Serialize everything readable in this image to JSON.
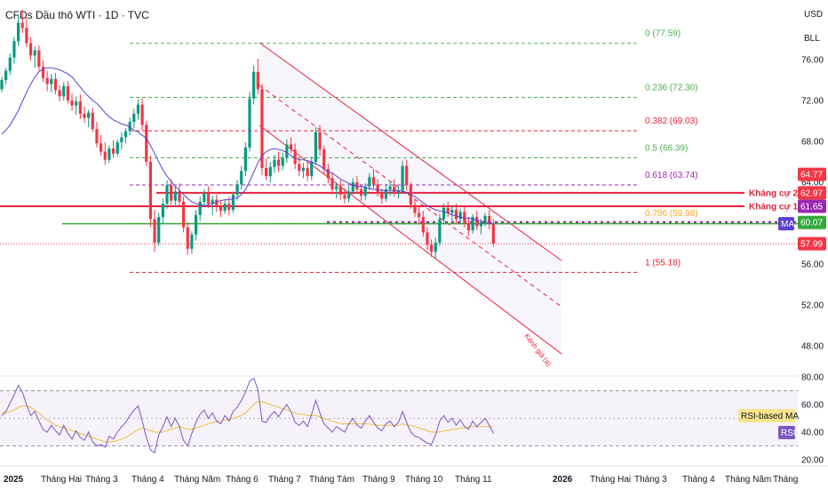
{
  "header": {
    "title": "CFDs Dầu thô WTI · 1D · TVC",
    "currency": "USD",
    "unit": "BLL"
  },
  "colors": {
    "up": "#089981",
    "down": "#f23645",
    "ma": "#5b3fd0",
    "rsi": "#7e57c2",
    "rsi_ma": "#f0c03a",
    "resistance": "#e8213a",
    "support": "#36a83c",
    "channel": "#e8213a",
    "pivot": "#9c27b0"
  },
  "chart_data": {
    "type": "candlestick",
    "price_axis": {
      "ticks": [
        "76.00",
        "72.00",
        "68.00",
        "64.00",
        "60.00",
        "56.00",
        "52.00",
        "48.00"
      ]
    },
    "rsi_axis": {
      "ticks": [
        "80.00",
        "60.00",
        "40.00",
        "20.00"
      ]
    },
    "time_axis": {
      "ticks": [
        {
          "label": "2025",
          "bold": true
        },
        {
          "label": "Tháng Hai",
          "bold": false
        },
        {
          "label": "Tháng 3",
          "bold": false
        },
        {
          "label": "Tháng 4",
          "bold": false
        },
        {
          "label": "Tháng Năm",
          "bold": false
        },
        {
          "label": "Tháng 6",
          "bold": false
        },
        {
          "label": "Tháng 7",
          "bold": false
        },
        {
          "label": "Tháng Tám",
          "bold": false
        },
        {
          "label": "Tháng 9",
          "bold": false
        },
        {
          "label": "Tháng 10",
          "bold": false
        },
        {
          "label": "Tháng 11",
          "bold": false
        },
        {
          "label": "2026",
          "bold": true
        },
        {
          "label": "Tháng Hai",
          "bold": false
        },
        {
          "label": "Tháng 3",
          "bold": false
        },
        {
          "label": "Tháng 4",
          "bold": false
        },
        {
          "label": "Tháng Năm",
          "bold": false
        },
        {
          "label": "Tháng",
          "bold": false
        }
      ]
    },
    "fib_levels": [
      {
        "label": "0 (77.59)",
        "value": 77.59,
        "color": "#4caf50"
      },
      {
        "label": "0.236 (72.30)",
        "value": 72.3,
        "color": "#4caf50"
      },
      {
        "label": "0.382 (69.03)",
        "value": 69.03,
        "color": "#e8213a"
      },
      {
        "label": "0.5 (66.39)",
        "value": 66.39,
        "color": "#4caf50"
      },
      {
        "label": "0.618 (63.74)",
        "value": 63.74,
        "color": "#9c27b0"
      },
      {
        "label": "0.786 (59.98)",
        "value": 59.98,
        "color": "#f5a623"
      },
      {
        "label": "1 (55.18)",
        "value": 55.18,
        "color": "#e8213a"
      }
    ],
    "resistance": [
      {
        "label": "Kháng cự 2",
        "value": 62.97
      },
      {
        "label": "Kháng cự 1",
        "value": 61.65
      }
    ],
    "support_line": 59.95,
    "pivot_line": 60.07,
    "channel_label": "Kênh giá (a)",
    "price_badges": [
      {
        "text": "64.77",
        "value": 64.77,
        "color": "#f23645"
      },
      {
        "text": "62.97",
        "value": 62.97,
        "color": "#f23645"
      },
      {
        "text": "61.65",
        "value": 61.65,
        "color": "#9c27b0"
      },
      {
        "text": "60.07",
        "value": 60.07,
        "color": "#36a83c"
      },
      {
        "text": "MA",
        "value": 59.95,
        "color": "#5b3fd0"
      },
      {
        "text": "57.99",
        "value": 57.99,
        "color": "#f23645"
      }
    ],
    "rsi_labels": {
      "ma": "RSI-based MA",
      "rsi": "RSI"
    },
    "rsi_bounds": [
      70,
      50,
      30
    ],
    "candles": [
      [
        73.1,
        74.3,
        72.8,
        74.0
      ],
      [
        74.0,
        75.2,
        73.6,
        74.9
      ],
      [
        74.9,
        76.6,
        74.5,
        76.2
      ],
      [
        76.2,
        78.2,
        75.6,
        77.8
      ],
      [
        77.8,
        80.3,
        77.3,
        79.6
      ],
      [
        79.6,
        80.9,
        78.6,
        79.1
      ],
      [
        79.1,
        80.1,
        77.2,
        77.6
      ],
      [
        77.6,
        78.2,
        75.9,
        76.4
      ],
      [
        76.4,
        77.3,
        75.2,
        76.9
      ],
      [
        76.9,
        77.4,
        74.9,
        75.3
      ],
      [
        75.3,
        75.9,
        73.8,
        74.2
      ],
      [
        74.2,
        74.9,
        72.9,
        73.6
      ],
      [
        73.6,
        74.6,
        72.8,
        74.1
      ],
      [
        74.1,
        74.7,
        72.6,
        73.0
      ],
      [
        73.0,
        73.5,
        71.9,
        72.4
      ],
      [
        72.4,
        73.8,
        72.0,
        73.4
      ],
      [
        73.4,
        73.9,
        71.7,
        72.0
      ],
      [
        72.0,
        72.7,
        71.0,
        71.5
      ],
      [
        71.5,
        72.4,
        70.6,
        71.9
      ],
      [
        71.9,
        72.6,
        70.2,
        70.7
      ],
      [
        70.7,
        71.4,
        69.8,
        70.3
      ],
      [
        70.3,
        71.1,
        69.4,
        70.8
      ],
      [
        70.8,
        71.3,
        68.9,
        69.2
      ],
      [
        69.2,
        69.9,
        67.4,
        67.8
      ],
      [
        67.8,
        68.6,
        66.6,
        67.0
      ],
      [
        67.0,
        67.9,
        65.7,
        66.2
      ],
      [
        66.2,
        67.6,
        65.9,
        67.3
      ],
      [
        67.3,
        68.1,
        66.4,
        66.8
      ],
      [
        66.8,
        68.2,
        66.5,
        67.9
      ],
      [
        67.9,
        68.9,
        67.2,
        68.4
      ],
      [
        68.4,
        69.3,
        67.8,
        69.0
      ],
      [
        69.0,
        70.3,
        68.6,
        69.9
      ],
      [
        69.9,
        71.2,
        69.3,
        70.7
      ],
      [
        70.7,
        72.1,
        70.1,
        71.6
      ],
      [
        71.6,
        72.2,
        69.1,
        69.6
      ],
      [
        69.6,
        70.0,
        65.6,
        66.0
      ],
      [
        66.0,
        66.6,
        59.6,
        60.4
      ],
      [
        60.4,
        61.3,
        57.2,
        58.1
      ],
      [
        58.1,
        61.0,
        57.8,
        60.6
      ],
      [
        60.6,
        62.4,
        59.9,
        61.9
      ],
      [
        61.9,
        64.2,
        61.4,
        63.7
      ],
      [
        63.7,
        64.3,
        61.8,
        62.2
      ],
      [
        62.2,
        63.6,
        61.6,
        63.1
      ],
      [
        63.1,
        63.9,
        61.7,
        62.1
      ],
      [
        62.1,
        62.6,
        59.1,
        59.6
      ],
      [
        59.6,
        60.1,
        56.9,
        57.5
      ],
      [
        57.5,
        59.2,
        57.0,
        58.9
      ],
      [
        58.9,
        61.3,
        58.3,
        60.8
      ],
      [
        60.8,
        62.6,
        60.2,
        62.1
      ],
      [
        62.1,
        63.3,
        61.6,
        62.9
      ],
      [
        62.9,
        63.6,
        61.5,
        61.9
      ],
      [
        61.9,
        62.7,
        60.8,
        62.3
      ],
      [
        62.3,
        62.8,
        61.1,
        61.6
      ],
      [
        61.6,
        62.3,
        60.6,
        61.2
      ],
      [
        61.2,
        62.3,
        60.9,
        61.9
      ],
      [
        61.9,
        62.6,
        60.8,
        61.3
      ],
      [
        61.3,
        63.1,
        61.0,
        62.8
      ],
      [
        62.8,
        64.2,
        62.2,
        63.8
      ],
      [
        63.8,
        65.6,
        63.3,
        65.1
      ],
      [
        65.1,
        67.9,
        64.6,
        67.4
      ],
      [
        67.4,
        72.8,
        67.0,
        72.2
      ],
      [
        72.2,
        75.4,
        71.6,
        74.8
      ],
      [
        74.8,
        76.1,
        72.6,
        73.1
      ],
      [
        73.1,
        73.6,
        64.7,
        65.4
      ],
      [
        65.4,
        66.3,
        64.2,
        64.6
      ],
      [
        64.6,
        66.0,
        64.0,
        65.5
      ],
      [
        65.5,
        66.7,
        64.9,
        66.2
      ],
      [
        66.2,
        67.0,
        65.0,
        65.6
      ],
      [
        65.6,
        66.9,
        65.2,
        66.4
      ],
      [
        66.4,
        68.2,
        65.9,
        67.7
      ],
      [
        67.7,
        68.4,
        66.8,
        67.2
      ],
      [
        67.2,
        67.8,
        65.3,
        65.8
      ],
      [
        65.8,
        66.4,
        64.6,
        65.1
      ],
      [
        65.1,
        65.9,
        64.4,
        65.4
      ],
      [
        65.4,
        66.1,
        64.1,
        64.6
      ],
      [
        64.6,
        66.5,
        64.2,
        66.0
      ],
      [
        66.0,
        69.4,
        65.7,
        68.9
      ],
      [
        68.9,
        69.6,
        66.6,
        67.2
      ],
      [
        67.2,
        67.6,
        64.8,
        65.3
      ],
      [
        65.3,
        65.8,
        63.9,
        64.4
      ],
      [
        64.4,
        64.9,
        62.8,
        63.3
      ],
      [
        63.3,
        64.0,
        62.4,
        63.6
      ],
      [
        63.6,
        64.2,
        62.3,
        62.8
      ],
      [
        62.8,
        63.4,
        61.9,
        62.4
      ],
      [
        62.4,
        63.6,
        62.0,
        63.1
      ],
      [
        63.1,
        64.4,
        62.8,
        64.0
      ],
      [
        64.0,
        64.6,
        62.9,
        63.3
      ],
      [
        63.3,
        63.8,
        62.2,
        62.7
      ],
      [
        62.7,
        63.9,
        62.3,
        63.6
      ],
      [
        63.6,
        64.9,
        63.2,
        64.5
      ],
      [
        64.5,
        65.3,
        63.4,
        63.8
      ],
      [
        63.8,
        64.3,
        62.6,
        63.0
      ],
      [
        63.0,
        63.4,
        61.9,
        62.4
      ],
      [
        62.4,
        63.8,
        62.1,
        63.3
      ],
      [
        63.3,
        64.1,
        62.7,
        63.6
      ],
      [
        63.6,
        64.3,
        62.6,
        62.9
      ],
      [
        62.9,
        63.6,
        62.4,
        63.2
      ],
      [
        63.2,
        66.1,
        63.0,
        65.6
      ],
      [
        65.6,
        66.2,
        63.2,
        63.7
      ],
      [
        63.7,
        64.0,
        61.4,
        61.8
      ],
      [
        61.8,
        62.3,
        60.6,
        61.0
      ],
      [
        61.0,
        61.6,
        59.9,
        60.6
      ],
      [
        60.6,
        61.2,
        58.7,
        59.1
      ],
      [
        59.1,
        59.6,
        57.4,
        57.9
      ],
      [
        57.9,
        58.4,
        56.7,
        57.2
      ],
      [
        57.2,
        58.6,
        56.5,
        58.1
      ],
      [
        58.1,
        60.9,
        57.8,
        60.4
      ],
      [
        60.4,
        61.9,
        60.0,
        61.5
      ],
      [
        61.5,
        62.1,
        60.6,
        61.0
      ],
      [
        61.0,
        61.7,
        60.2,
        61.3
      ],
      [
        61.3,
        61.9,
        59.9,
        60.4
      ],
      [
        60.4,
        61.4,
        60.0,
        61.1
      ],
      [
        61.1,
        61.6,
        59.6,
        60.0
      ],
      [
        60.0,
        60.6,
        58.8,
        59.3
      ],
      [
        59.3,
        60.9,
        59.0,
        60.6
      ],
      [
        60.6,
        61.2,
        59.3,
        59.7
      ],
      [
        59.7,
        60.4,
        58.9,
        60.1
      ],
      [
        60.1,
        61.0,
        59.7,
        60.7
      ],
      [
        60.7,
        61.3,
        59.4,
        59.9
      ],
      [
        59.9,
        60.4,
        57.7,
        58.0
      ]
    ],
    "ma_line": [
      68.7,
      69.1,
      69.6,
      70.3,
      71.0,
      71.9,
      72.8,
      73.6,
      74.3,
      74.8,
      75.1,
      75.2,
      75.2,
      75.1,
      75.0,
      74.8,
      74.6,
      74.3,
      73.8,
      73.3,
      72.8,
      72.4,
      72.0,
      71.7,
      71.3,
      70.8,
      70.4,
      70.1,
      69.9,
      69.7,
      69.6,
      69.4,
      69.1,
      68.9,
      68.6,
      68.3,
      67.6,
      66.8,
      66.0,
      65.2,
      64.6,
      64.1,
      63.6,
      63.2,
      62.8,
      62.4,
      62.1,
      61.9,
      61.8,
      61.7,
      61.8,
      61.9,
      62.1,
      62.2,
      62.3,
      62.3,
      62.4,
      62.5,
      62.8,
      63.3,
      64.1,
      65.0,
      65.9,
      66.6,
      67.0,
      67.2,
      67.3,
      67.2,
      67.1,
      66.9,
      66.6,
      66.4,
      66.2,
      66.2,
      66.1,
      66.0,
      65.8,
      65.6,
      65.3,
      65.0,
      64.9,
      64.6,
      64.3,
      64.1,
      63.9,
      63.7,
      63.6,
      63.6,
      63.5,
      63.4,
      63.3,
      63.3,
      63.2,
      63.2,
      63.2,
      63.2,
      63.2,
      63.1,
      63.0,
      62.8,
      62.6,
      62.3,
      62.0,
      61.7,
      61.5,
      61.3,
      61.2,
      61.1,
      61.0,
      60.8,
      60.7,
      60.6,
      60.5,
      60.5,
      60.4,
      60.3,
      60.2,
      60.1,
      60.0,
      59.9
    ],
    "rsi_values": [
      52,
      55,
      61,
      67,
      74,
      69,
      60,
      52,
      55,
      48,
      42,
      40,
      45,
      41,
      38,
      45,
      39,
      35,
      41,
      36,
      34,
      40,
      33,
      30,
      31,
      29,
      37,
      35,
      40,
      44,
      47,
      52,
      56,
      59,
      48,
      36,
      27,
      25,
      38,
      44,
      51,
      44,
      50,
      44,
      34,
      30,
      39,
      47,
      53,
      56,
      50,
      54,
      48,
      46,
      52,
      48,
      55,
      58,
      63,
      69,
      77,
      79,
      71,
      48,
      47,
      52,
      55,
      51,
      56,
      60,
      55,
      47,
      45,
      48,
      44,
      53,
      63,
      54,
      46,
      43,
      40,
      44,
      42,
      40,
      46,
      50,
      45,
      43,
      48,
      52,
      47,
      43,
      41,
      46,
      48,
      44,
      47,
      55,
      47,
      40,
      37,
      36,
      34,
      32,
      31,
      38,
      48,
      52,
      47,
      50,
      45,
      49,
      44,
      42,
      48,
      44,
      47,
      50,
      45,
      39
    ],
    "rsi_ma_values": [
      54,
      54,
      55,
      56,
      58,
      59,
      59,
      58,
      56,
      54,
      51,
      49,
      47,
      45,
      44,
      43,
      42,
      41,
      40,
      39,
      38,
      37,
      36,
      35,
      34,
      33,
      33,
      33,
      34,
      35,
      36,
      38,
      40,
      42,
      43,
      42,
      41,
      40,
      40,
      40,
      41,
      42,
      43,
      44,
      43,
      42,
      42,
      43,
      44,
      45,
      46,
      47,
      48,
      48,
      49,
      49,
      50,
      51,
      52,
      54,
      57,
      60,
      62,
      62,
      61,
      60,
      59,
      58,
      57,
      56,
      55,
      54,
      53,
      53,
      52,
      52,
      52,
      51,
      50,
      49,
      48,
      47,
      46,
      46,
      46,
      46,
      46,
      46,
      46,
      46,
      45,
      45,
      45,
      45,
      45,
      45,
      45,
      46,
      45,
      45,
      44,
      43,
      42,
      41,
      40,
      40,
      40,
      41,
      41,
      42,
      42,
      43,
      43,
      44,
      44,
      44,
      44,
      44,
      44,
      44
    ]
  }
}
